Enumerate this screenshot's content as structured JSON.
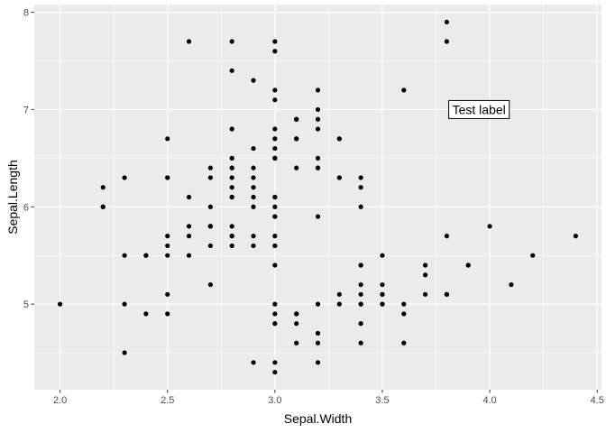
{
  "chart_data": {
    "type": "scatter",
    "title": "",
    "xlabel": "Sepal.Width",
    "ylabel": "Sepal.Length",
    "xlim": [
      1.88,
      4.52
    ],
    "ylim": [
      4.12,
      8.08
    ],
    "x_ticks": [
      2.0,
      2.5,
      3.0,
      3.5,
      4.0,
      4.5
    ],
    "x_tick_labels": [
      "2.0",
      "2.5",
      "3.0",
      "3.5",
      "4.0",
      "4.5"
    ],
    "y_ticks": [
      5,
      6,
      7,
      8
    ],
    "y_tick_labels": [
      "5",
      "6",
      "7",
      "8"
    ],
    "grid": true,
    "legend": "none",
    "colors": {
      "panel": "#ebebeb",
      "grid": "#ffffff",
      "point": "#000000",
      "tick": "#333333"
    },
    "annotation": {
      "label": "Test label",
      "x": 3.95,
      "y": 7.0
    },
    "points": [
      [
        3.5,
        5.1
      ],
      [
        3.0,
        4.9
      ],
      [
        3.2,
        4.7
      ],
      [
        3.1,
        4.6
      ],
      [
        3.6,
        5.0
      ],
      [
        3.9,
        5.4
      ],
      [
        3.4,
        4.6
      ],
      [
        3.4,
        5.0
      ],
      [
        2.9,
        4.4
      ],
      [
        3.1,
        4.9
      ],
      [
        3.7,
        5.4
      ],
      [
        3.4,
        4.8
      ],
      [
        3.0,
        4.8
      ],
      [
        3.0,
        4.3
      ],
      [
        4.0,
        5.8
      ],
      [
        4.4,
        5.7
      ],
      [
        3.9,
        5.4
      ],
      [
        3.5,
        5.1
      ],
      [
        3.8,
        5.7
      ],
      [
        3.8,
        5.1
      ],
      [
        3.4,
        5.4
      ],
      [
        3.7,
        5.1
      ],
      [
        3.6,
        4.6
      ],
      [
        3.3,
        5.1
      ],
      [
        3.4,
        4.8
      ],
      [
        3.0,
        5.0
      ],
      [
        3.4,
        5.0
      ],
      [
        3.5,
        5.2
      ],
      [
        3.4,
        5.2
      ],
      [
        3.2,
        4.7
      ],
      [
        3.1,
        4.8
      ],
      [
        3.4,
        5.4
      ],
      [
        4.1,
        5.2
      ],
      [
        4.2,
        5.5
      ],
      [
        3.1,
        4.9
      ],
      [
        3.2,
        5.0
      ],
      [
        3.5,
        5.5
      ],
      [
        3.6,
        4.9
      ],
      [
        3.0,
        4.4
      ],
      [
        3.4,
        5.1
      ],
      [
        3.5,
        5.0
      ],
      [
        2.3,
        4.5
      ],
      [
        3.2,
        4.4
      ],
      [
        3.5,
        5.0
      ],
      [
        3.8,
        5.1
      ],
      [
        3.0,
        4.8
      ],
      [
        3.8,
        5.1
      ],
      [
        3.2,
        4.6
      ],
      [
        3.7,
        5.3
      ],
      [
        3.3,
        5.0
      ],
      [
        3.2,
        7.0
      ],
      [
        3.2,
        6.4
      ],
      [
        3.1,
        6.9
      ],
      [
        2.3,
        5.5
      ],
      [
        2.8,
        6.5
      ],
      [
        2.8,
        5.7
      ],
      [
        3.3,
        6.3
      ],
      [
        2.4,
        4.9
      ],
      [
        2.9,
        6.6
      ],
      [
        2.7,
        5.2
      ],
      [
        2.0,
        5.0
      ],
      [
        3.0,
        5.9
      ],
      [
        2.2,
        6.0
      ],
      [
        2.9,
        6.1
      ],
      [
        2.9,
        5.6
      ],
      [
        3.1,
        6.7
      ],
      [
        3.0,
        5.6
      ],
      [
        2.7,
        5.8
      ],
      [
        2.2,
        6.2
      ],
      [
        2.5,
        5.6
      ],
      [
        3.2,
        5.9
      ],
      [
        2.8,
        6.1
      ],
      [
        2.5,
        6.3
      ],
      [
        2.8,
        6.1
      ],
      [
        2.9,
        6.4
      ],
      [
        3.0,
        6.6
      ],
      [
        2.8,
        6.8
      ],
      [
        3.0,
        6.7
      ],
      [
        2.9,
        6.0
      ],
      [
        2.6,
        5.7
      ],
      [
        2.4,
        5.5
      ],
      [
        2.4,
        5.5
      ],
      [
        2.7,
        5.8
      ],
      [
        2.7,
        6.0
      ],
      [
        3.0,
        5.4
      ],
      [
        3.4,
        6.0
      ],
      [
        3.1,
        6.7
      ],
      [
        2.3,
        6.3
      ],
      [
        3.0,
        5.6
      ],
      [
        2.5,
        5.5
      ],
      [
        2.6,
        5.5
      ],
      [
        3.0,
        6.1
      ],
      [
        2.6,
        5.8
      ],
      [
        2.3,
        5.0
      ],
      [
        2.7,
        5.6
      ],
      [
        3.0,
        5.7
      ],
      [
        2.9,
        5.7
      ],
      [
        2.9,
        6.2
      ],
      [
        2.5,
        5.1
      ],
      [
        2.8,
        5.7
      ],
      [
        3.3,
        6.3
      ],
      [
        2.7,
        5.8
      ],
      [
        3.0,
        7.1
      ],
      [
        2.9,
        6.3
      ],
      [
        3.0,
        6.5
      ],
      [
        3.0,
        7.6
      ],
      [
        2.5,
        4.9
      ],
      [
        2.9,
        7.3
      ],
      [
        2.5,
        6.7
      ],
      [
        3.6,
        7.2
      ],
      [
        3.2,
        6.5
      ],
      [
        2.7,
        6.4
      ],
      [
        3.0,
        6.8
      ],
      [
        2.5,
        5.7
      ],
      [
        2.8,
        5.8
      ],
      [
        3.2,
        6.4
      ],
      [
        3.0,
        6.5
      ],
      [
        3.8,
        7.7
      ],
      [
        2.6,
        7.7
      ],
      [
        2.2,
        6.0
      ],
      [
        3.2,
        6.9
      ],
      [
        2.8,
        5.6
      ],
      [
        2.8,
        7.7
      ],
      [
        2.7,
        6.3
      ],
      [
        3.3,
        6.7
      ],
      [
        3.2,
        7.2
      ],
      [
        2.8,
        6.2
      ],
      [
        3.0,
        6.1
      ],
      [
        2.8,
        6.4
      ],
      [
        3.0,
        7.2
      ],
      [
        2.8,
        7.4
      ],
      [
        3.8,
        7.9
      ],
      [
        2.8,
        6.4
      ],
      [
        2.8,
        6.3
      ],
      [
        2.6,
        6.1
      ],
      [
        3.0,
        7.7
      ],
      [
        3.4,
        6.3
      ],
      [
        3.1,
        6.4
      ],
      [
        3.0,
        6.0
      ],
      [
        3.1,
        6.9
      ],
      [
        3.1,
        6.7
      ],
      [
        3.1,
        6.9
      ],
      [
        2.7,
        5.8
      ],
      [
        3.2,
        6.8
      ],
      [
        3.3,
        6.7
      ],
      [
        3.0,
        6.7
      ],
      [
        2.5,
        6.3
      ],
      [
        3.0,
        6.5
      ],
      [
        3.4,
        6.2
      ],
      [
        3.0,
        5.9
      ]
    ]
  }
}
